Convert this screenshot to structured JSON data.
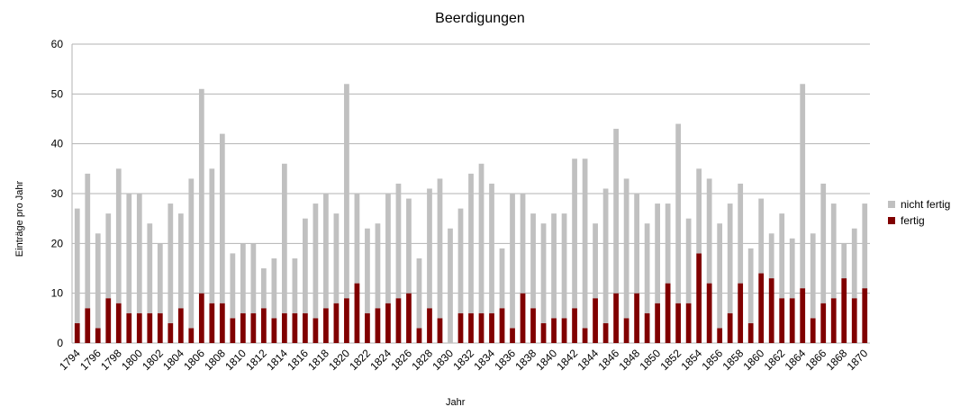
{
  "chart_data": {
    "type": "bar",
    "stacked": true,
    "title": "Beerdigungen",
    "xlabel": "Jahr",
    "ylabel": "Einträge pro Jahr",
    "ylim": [
      0,
      60
    ],
    "yticks": [
      0,
      10,
      20,
      30,
      40,
      50,
      60
    ],
    "grid": true,
    "legend_position": "right",
    "categories": [
      1794,
      1795,
      1796,
      1797,
      1798,
      1799,
      1800,
      1801,
      1802,
      1803,
      1804,
      1805,
      1806,
      1807,
      1808,
      1809,
      1810,
      1811,
      1812,
      1813,
      1814,
      1815,
      1816,
      1817,
      1818,
      1819,
      1820,
      1821,
      1822,
      1823,
      1824,
      1825,
      1826,
      1827,
      1828,
      1829,
      1830,
      1831,
      1832,
      1833,
      1834,
      1835,
      1836,
      1837,
      1838,
      1839,
      1840,
      1841,
      1842,
      1843,
      1844,
      1845,
      1846,
      1847,
      1848,
      1849,
      1850,
      1851,
      1852,
      1853,
      1854,
      1855,
      1856,
      1857,
      1858,
      1859,
      1860,
      1861,
      1862,
      1863,
      1864,
      1865,
      1866,
      1867,
      1868,
      1869,
      1870
    ],
    "tick_labels": [
      "1794",
      "1796",
      "1798",
      "1800",
      "1802",
      "1804",
      "1806",
      "1808",
      "1810",
      "1812",
      "1814",
      "1816",
      "1818",
      "1820",
      "1822",
      "1824",
      "1826",
      "1828",
      "1830",
      "1832",
      "1834",
      "1836",
      "1838",
      "1840",
      "1842",
      "1844",
      "1846",
      "1848",
      "1850",
      "1852",
      "1854",
      "1856",
      "1858",
      "1860",
      "1862",
      "1864",
      "1866",
      "1868",
      "1870"
    ],
    "series": [
      {
        "name": "fertig",
        "color": "#800000",
        "values": [
          4,
          7,
          3,
          9,
          8,
          6,
          6,
          6,
          6,
          4,
          7,
          3,
          10,
          8,
          8,
          5,
          6,
          6,
          7,
          5,
          6,
          6,
          6,
          5,
          7,
          8,
          9,
          12,
          6,
          7,
          8,
          9,
          10,
          3,
          7,
          5,
          0,
          6,
          6,
          6,
          6,
          7,
          3,
          10,
          7,
          4,
          5,
          5,
          7,
          3,
          9,
          4,
          10,
          5,
          10,
          6,
          8,
          12,
          8,
          8,
          18,
          12,
          3,
          6,
          12,
          4,
          14,
          13,
          9,
          9,
          11,
          5,
          8,
          9,
          13,
          9,
          11
        ]
      },
      {
        "name": "nicht fertig",
        "color": "#c0c0c0",
        "values": [
          23,
          27,
          19,
          17,
          27,
          24,
          24,
          18,
          14,
          24,
          19,
          30,
          41,
          27,
          34,
          13,
          14,
          14,
          8,
          12,
          30,
          11,
          19,
          23,
          23,
          18,
          43,
          18,
          17,
          17,
          22,
          23,
          19,
          14,
          24,
          28,
          23,
          21,
          28,
          30,
          26,
          12,
          27,
          20,
          19,
          20,
          21,
          21,
          30,
          34,
          15,
          27,
          33,
          28,
          20,
          18,
          20,
          16,
          36,
          17,
          17,
          21,
          21,
          22,
          20,
          15,
          15,
          9,
          17,
          12,
          41,
          17,
          24,
          19,
          7,
          14,
          17
        ]
      }
    ]
  }
}
